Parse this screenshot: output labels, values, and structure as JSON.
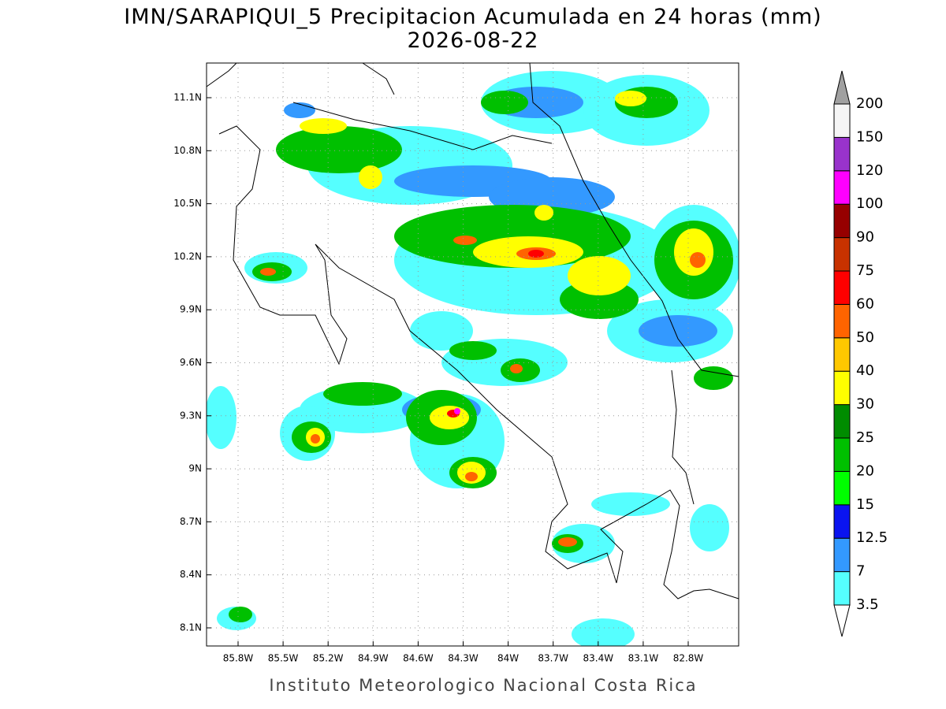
{
  "map": {
    "title": "IMN/SARAPIQUI_5 Precipitacion Acumulada en 24 horas (mm)",
    "date": "2026-08-22",
    "footer": "Instituto Meteorologico Nacional Costa Rica",
    "lat_ticks": [
      {
        "value": 11.1,
        "label": "11.1N"
      },
      {
        "value": 10.8,
        "label": "10.8N"
      },
      {
        "value": 10.5,
        "label": "10.5N"
      },
      {
        "value": 10.2,
        "label": "10.2N"
      },
      {
        "value": 9.9,
        "label": "9.9N"
      },
      {
        "value": 9.6,
        "label": "9.6N"
      },
      {
        "value": 9.3,
        "label": "9.3N"
      },
      {
        "value": 9,
        "label": "9N"
      },
      {
        "value": 8.7,
        "label": "8.7N"
      },
      {
        "value": 8.4,
        "label": "8.4N"
      },
      {
        "value": 8.1,
        "label": "8.1N"
      }
    ],
    "lon_ticks": [
      {
        "value": 85.8,
        "label": "85.8W"
      },
      {
        "value": 85.5,
        "label": "85.5W"
      },
      {
        "value": 85.2,
        "label": "85.2W"
      },
      {
        "value": 84.9,
        "label": "84.9W"
      },
      {
        "value": 84.6,
        "label": "84.6W"
      },
      {
        "value": 84.3,
        "label": "84.3W"
      },
      {
        "value": 84,
        "label": "84W"
      },
      {
        "value": 83.7,
        "label": "83.7W"
      },
      {
        "value": 83.4,
        "label": "83.4W"
      },
      {
        "value": 83.1,
        "label": "83.1W"
      },
      {
        "value": 82.8,
        "label": "82.8W"
      }
    ],
    "colorbar": {
      "levels": [
        3.5,
        7,
        12.5,
        15,
        20,
        25,
        30,
        40,
        50,
        60,
        75,
        90,
        100,
        120,
        150,
        200
      ],
      "colors": [
        "#55ffff",
        "#3399ff",
        "#0a14f0",
        "#00ff00",
        "#00c000",
        "#008c00",
        "#ffff00",
        "#ffc800",
        "#ff6400",
        "#ff0000",
        "#c83200",
        "#960000",
        "#ff00ff",
        "#9933cc",
        "#f5f5f5"
      ],
      "over_color": "#a0a0a0",
      "under_color": "#ffffff"
    }
  }
}
